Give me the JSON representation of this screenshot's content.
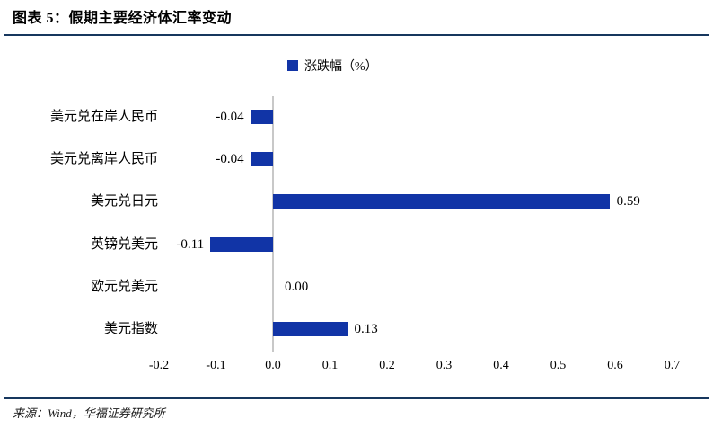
{
  "header": {
    "title": "图表 5：假期主要经济体汇率变动"
  },
  "legend": {
    "label": "涨跌幅（%）"
  },
  "chart_data": {
    "type": "bar",
    "orientation": "horizontal",
    "title": "假期主要经济体汇率变动",
    "series_name": "涨跌幅（%）",
    "categories": [
      "美元兑在岸人民币",
      "美元兑离岸人民币",
      "美元兑日元",
      "英镑兑美元",
      "欧元兑美元",
      "美元指数"
    ],
    "values": [
      -0.04,
      -0.04,
      0.59,
      -0.11,
      0.0,
      0.13
    ],
    "value_labels": [
      "-0.04",
      "-0.04",
      "0.59",
      "-0.11",
      "0.00",
      "0.13"
    ],
    "xticks": [
      -0.2,
      -0.1,
      0.0,
      0.1,
      0.2,
      0.3,
      0.4,
      0.5,
      0.6,
      0.7
    ],
    "xtick_labels": [
      "-0.2",
      "-0.1",
      "0.0",
      "0.1",
      "0.2",
      "0.3",
      "0.4",
      "0.5",
      "0.6",
      "0.7"
    ],
    "xlim": [
      -0.2,
      0.7
    ],
    "grid": false,
    "legend_position": "top-center",
    "bar_color": "#1134a6",
    "axis_line_color": "#c8c8c8"
  },
  "footer": {
    "source": "来源：Wind，华福证券研究所"
  },
  "colors": {
    "accent_blue": "#1134a6",
    "rule_navy": "#17375e",
    "axis_gray": "#c8c8c8"
  }
}
